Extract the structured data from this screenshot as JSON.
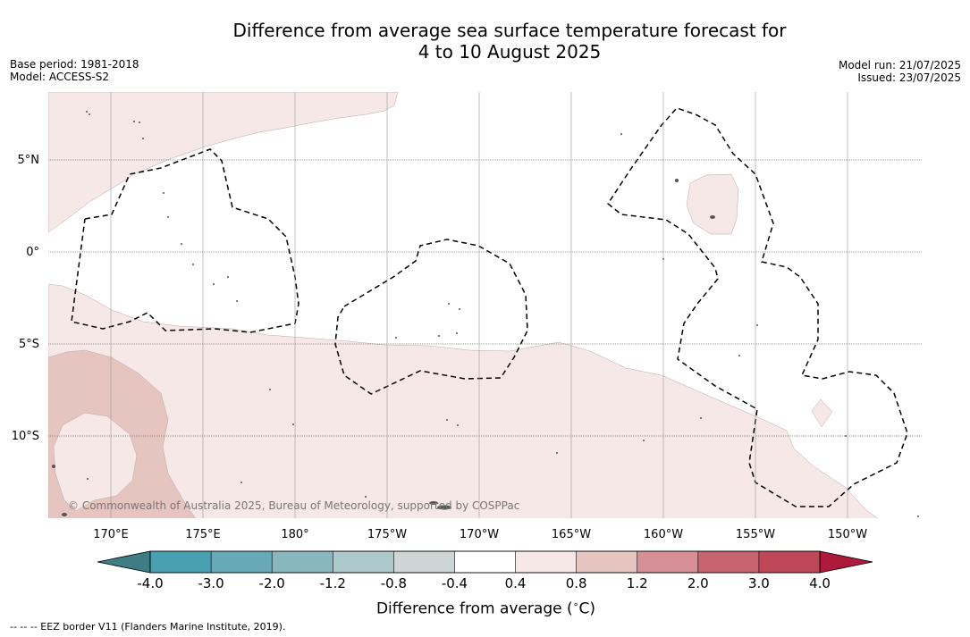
{
  "header": {
    "title_line1": "Difference from average sea surface temperature forecast for",
    "title_line2": "4 to 10 August 2025",
    "base_period": "Base period: 1981-2018",
    "model": "Model: ACCESS-S2",
    "model_run": "Model run: 21/07/2025",
    "issued": "Issued: 23/07/2025"
  },
  "map": {
    "lat_labels": [
      "5°N",
      "0°",
      "5°S",
      "10°S"
    ],
    "lon_labels": [
      "170°E",
      "175°E",
      "180°",
      "175°W",
      "170°W",
      "165°W",
      "160°W",
      "155°W",
      "150°W"
    ],
    "copyright": "© Commonwealth of Australia 2025, Bureau of Meteorology, supported by COSPPac",
    "colors": {
      "ocean_neutral": "#ffffff",
      "warm_0_4_0_8": "#f5e8e6",
      "warm_0_8_1_2": "#e6c5c0",
      "eez_line": "#000000",
      "land": "#555555"
    }
  },
  "colorbar": {
    "tick_labels": [
      "-4.0",
      "-3.0",
      "-2.0",
      "-1.2",
      "-0.8",
      "-0.4",
      "0.4",
      "0.8",
      "1.2",
      "2.0",
      "3.0",
      "4.0"
    ],
    "under_color": "#3d7d83",
    "over_color": "#ad1a3c",
    "bin_colors": [
      "#48a0b1",
      "#68a9b8",
      "#89b7c0",
      "#adc9cb",
      "#cdd5d5",
      "#ffffff",
      "#f5e8e6",
      "#e6c5c0",
      "#d68f96",
      "#c8646f",
      "#bf4858"
    ],
    "label": "Difference from average (",
    "label_unit": "∘",
    "label_unit_suffix": "C)"
  },
  "footer": {
    "legend_text": "--  --  -- EEZ border V11 (Flanders Marine Institute, 2019)."
  }
}
